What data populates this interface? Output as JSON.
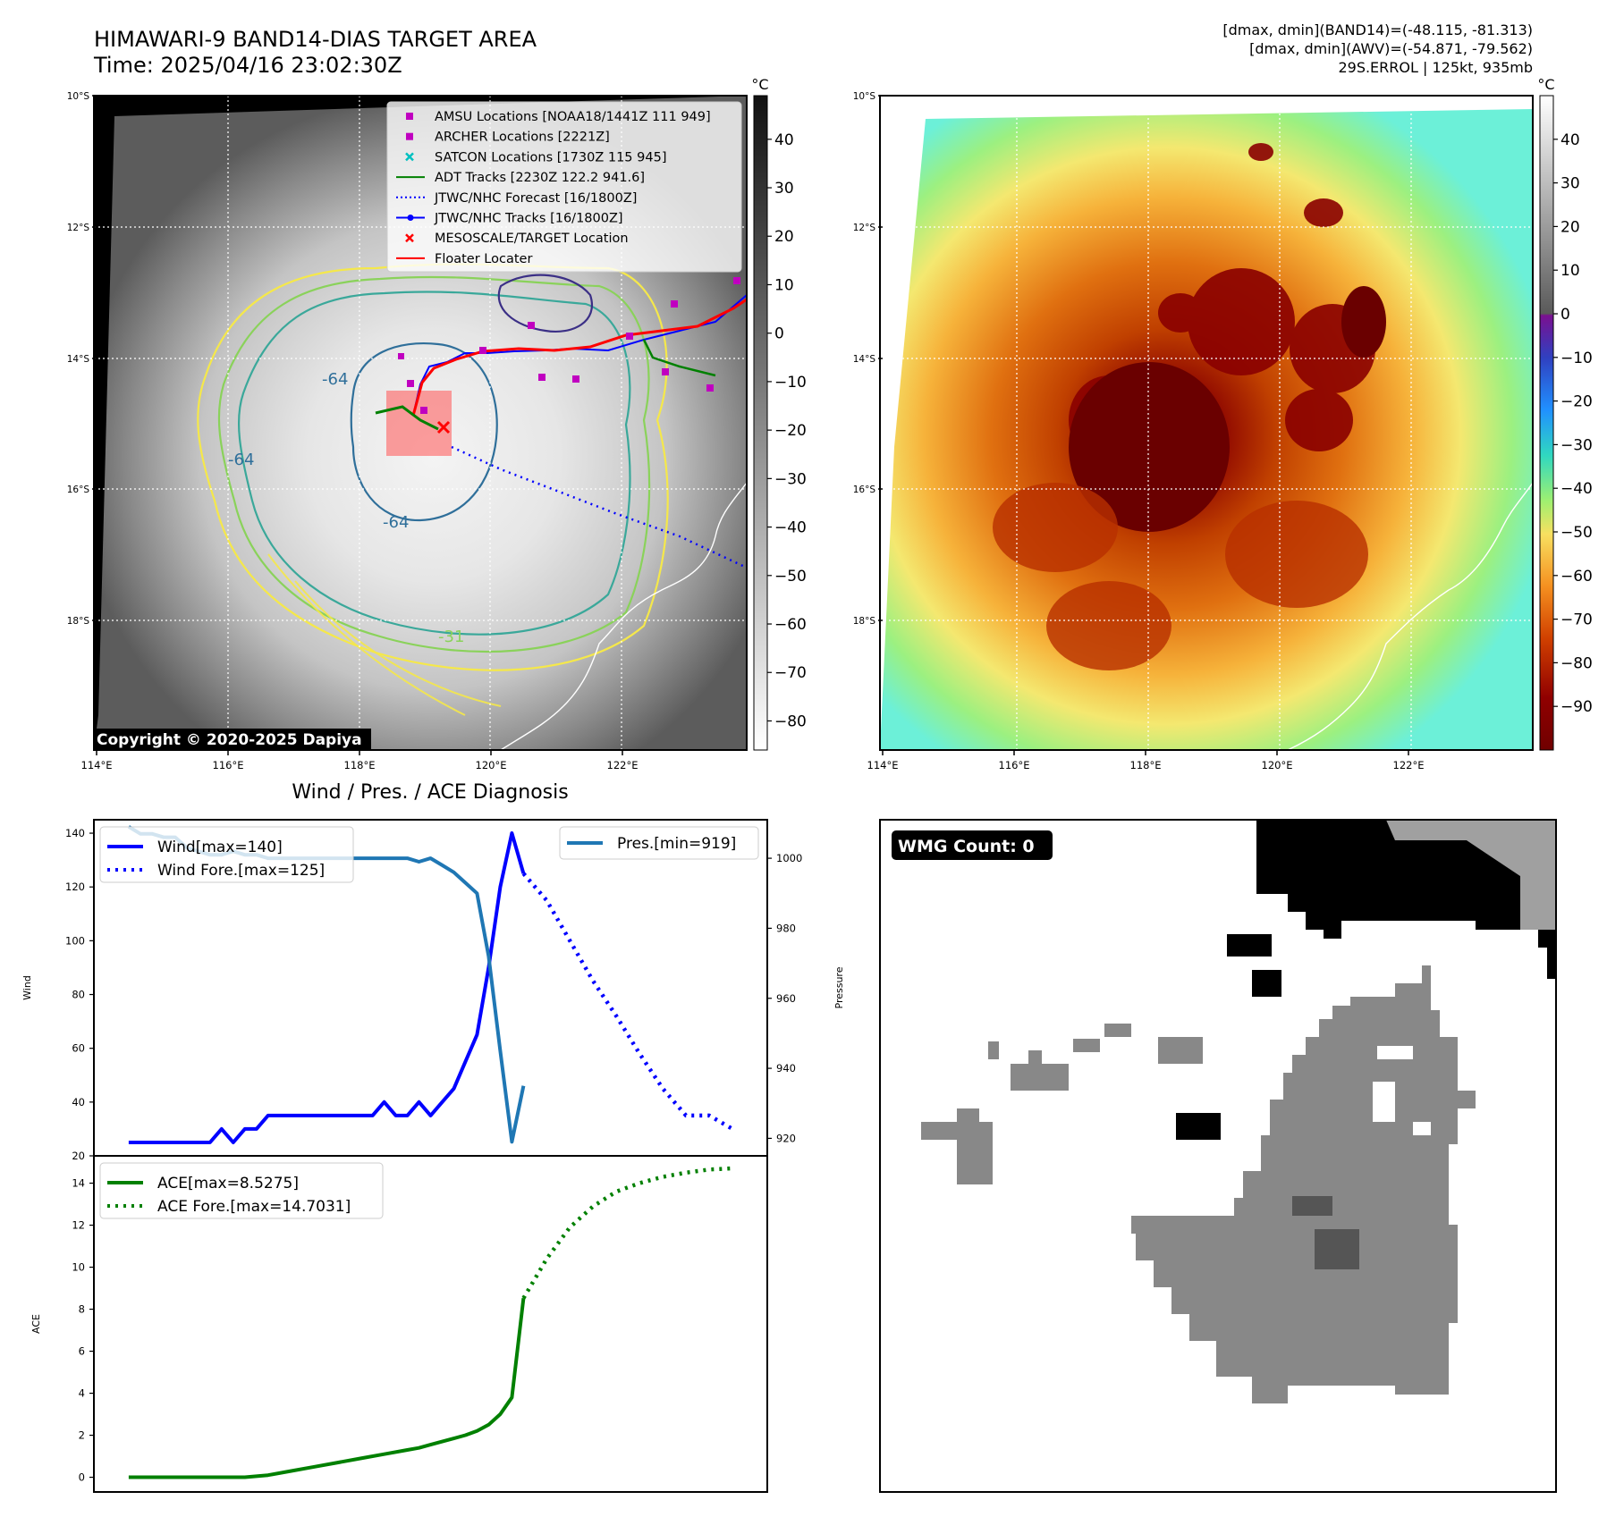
{
  "header": {
    "title": "HIMAWARI-9 BAND14-DIAS TARGET AREA",
    "time": "Time: 2025/04/16 23:02:30Z",
    "info1": "[dmax, dmin](BAND14)=(-48.115, -81.313)",
    "info2": "[dmax, dmin](AWV)=(-54.871, -79.562)",
    "info3": "29S.ERROL | 125kt, 935mb"
  },
  "map": {
    "lat_ticks": [
      "10°S",
      "12°S",
      "14°S",
      "16°S",
      "18°S"
    ],
    "lon_ticks": [
      "114°E",
      "116°E",
      "118°E",
      "120°E",
      "122°E"
    ],
    "contour_labels": [
      "-64",
      "-64",
      "-64",
      "-31"
    ],
    "copyright": "Copyright © 2020-2025 Dapiya",
    "legend": [
      {
        "label": "AMSU Locations [NOAA18/1441Z 111 949]",
        "color": "#c000c0",
        "marker": "square"
      },
      {
        "label": "ARCHER Locations [2221Z]",
        "color": "#c000c0",
        "marker": "square"
      },
      {
        "label": "SATCON Locations [1730Z 115 945]",
        "color": "#00c0c0",
        "marker": "x"
      },
      {
        "label": "ADT Tracks [2230Z 122.2 941.6]",
        "color": "#008000",
        "marker": "line"
      },
      {
        "label": "JTWC/NHC Forecast [16/1800Z]",
        "color": "#0000ff",
        "marker": "dotted"
      },
      {
        "label": "JTWC/NHC Tracks [16/1800Z]",
        "color": "#0000ff",
        "marker": "linedot"
      },
      {
        "label": "MESOSCALE/TARGET Location",
        "color": "#ff0000",
        "marker": "x"
      },
      {
        "label": "Floater Locater",
        "color": "#ff0000",
        "marker": "line"
      }
    ],
    "colorbar_unit": "°C",
    "colorbar1_ticks": [
      "40",
      "30",
      "20",
      "10",
      "0",
      "−10",
      "−20",
      "−30",
      "−40",
      "−50",
      "−60",
      "−70",
      "−80"
    ],
    "colorbar2_ticks": [
      "40",
      "30",
      "20",
      "10",
      "0",
      "−10",
      "−20",
      "−30",
      "−40",
      "−50",
      "−60",
      "−70",
      "−80",
      "−90"
    ]
  },
  "chart_data": [
    {
      "type": "line",
      "title": "Wind / Pres. / ACE Diagnosis",
      "ylabel": "Wind",
      "ylabel_right": "Pressure",
      "ylim": [
        20,
        145
      ],
      "ylim_right": [
        915,
        1011
      ],
      "yticks": [
        20,
        40,
        60,
        80,
        100,
        120,
        140
      ],
      "yticks_right": [
        920,
        940,
        960,
        980,
        1000
      ],
      "series": [
        {
          "name": "Wind[max=140]",
          "axis": "left",
          "color": "#0000ff",
          "style": "solid",
          "x": [
            0,
            1,
            2,
            3,
            4,
            5,
            6,
            7,
            8,
            9,
            10,
            11,
            12,
            13,
            14,
            15,
            16,
            17,
            18,
            19,
            20,
            21,
            22,
            23,
            24,
            25,
            26,
            27,
            28,
            29,
            30,
            31,
            32,
            33,
            34,
            35
          ],
          "values": [
            25,
            25,
            25,
            25,
            25,
            25,
            25,
            25,
            30,
            25,
            30,
            30,
            35,
            35,
            35,
            35,
            35,
            35,
            35,
            35,
            35,
            35,
            40,
            35,
            35,
            40,
            35,
            40,
            45,
            55,
            65,
            90,
            120,
            140,
            125,
            null
          ]
        },
        {
          "name": "Wind Fore.[max=125]",
          "axis": "left",
          "color": "#0000ff",
          "style": "dotted",
          "x": [
            34,
            36,
            38,
            40,
            42,
            44,
            46,
            48,
            50,
            52
          ],
          "values": [
            125,
            115,
            100,
            85,
            72,
            58,
            45,
            35,
            35,
            30
          ]
        },
        {
          "name": "Pres.[min=919]",
          "axis": "right",
          "color": "#1f77b4",
          "style": "solid",
          "x": [
            0,
            1,
            2,
            3,
            4,
            5,
            6,
            7,
            8,
            9,
            10,
            11,
            12,
            13,
            14,
            15,
            16,
            17,
            18,
            19,
            20,
            21,
            22,
            23,
            24,
            25,
            26,
            27,
            28,
            29,
            30,
            31,
            32,
            33,
            34
          ],
          "values": [
            1009,
            1007,
            1007,
            1006,
            1006,
            1003,
            1002,
            1001,
            1001,
            1002,
            1001,
            1001,
            1000,
            1000,
            1000,
            1000,
            1000,
            1000,
            1000,
            1000,
            1000,
            1000,
            1000,
            1000,
            1000,
            999,
            1000,
            998,
            996,
            993,
            990,
            972,
            945,
            919,
            935
          ]
        }
      ]
    },
    {
      "type": "line",
      "ylabel": "ACE",
      "ylim": [
        -0.7,
        15.3
      ],
      "yticks": [
        0,
        2,
        4,
        6,
        8,
        10,
        12,
        14
      ],
      "series": [
        {
          "name": "ACE[max=8.5275]",
          "color": "#008000",
          "style": "solid",
          "x": [
            0,
            4,
            8,
            10,
            12,
            14,
            16,
            18,
            20,
            22,
            24,
            25,
            26,
            27,
            28,
            29,
            30,
            31,
            32,
            33,
            34
          ],
          "values": [
            0,
            0,
            0,
            0,
            0.1,
            0.3,
            0.5,
            0.7,
            0.9,
            1.1,
            1.3,
            1.4,
            1.55,
            1.7,
            1.85,
            2.0,
            2.2,
            2.5,
            3.0,
            3.8,
            8.5275
          ]
        },
        {
          "name": "ACE Fore.[max=14.7031]",
          "color": "#008000",
          "style": "dotted",
          "x": [
            34,
            36,
            38,
            40,
            42,
            44,
            46,
            48,
            50,
            52
          ],
          "values": [
            8.5275,
            10.4,
            11.9,
            12.9,
            13.6,
            14.0,
            14.3,
            14.5,
            14.65,
            14.7031
          ]
        }
      ]
    }
  ],
  "wmg": {
    "label": "WMG Count: 0"
  }
}
